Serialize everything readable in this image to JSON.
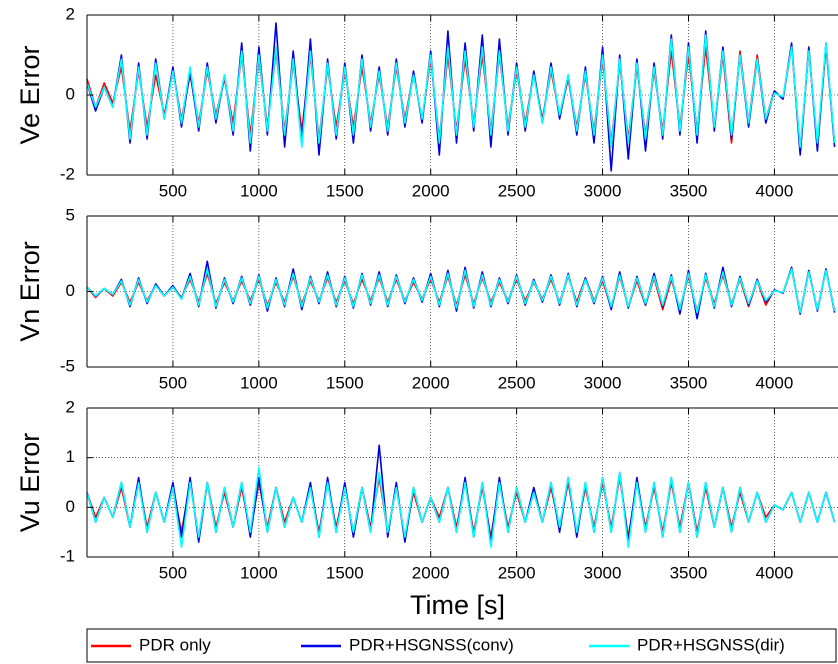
{
  "chart_data": [
    {
      "type": "line",
      "ylabel": "Ve Error",
      "xlim": [
        0,
        4370
      ],
      "ylim": [
        -2,
        2
      ],
      "xticks": [
        500,
        1000,
        1500,
        2000,
        2500,
        3000,
        3500,
        4000
      ],
      "yticks": [
        -2,
        0,
        2
      ],
      "grid": true,
      "x": [
        0,
        50,
        100,
        150,
        200,
        250,
        300,
        350,
        400,
        450,
        500,
        550,
        600,
        650,
        700,
        750,
        800,
        850,
        900,
        950,
        1000,
        1050,
        1100,
        1150,
        1200,
        1250,
        1300,
        1350,
        1400,
        1450,
        1500,
        1550,
        1600,
        1650,
        1700,
        1750,
        1800,
        1850,
        1900,
        1950,
        2000,
        2050,
        2100,
        2150,
        2200,
        2250,
        2300,
        2350,
        2400,
        2450,
        2500,
        2550,
        2600,
        2650,
        2700,
        2750,
        2800,
        2850,
        2900,
        2950,
        3000,
        3050,
        3100,
        3150,
        3200,
        3250,
        3300,
        3350,
        3400,
        3450,
        3500,
        3550,
        3600,
        3650,
        3700,
        3750,
        3800,
        3850,
        3900,
        3950,
        4000,
        4050,
        4100,
        4150,
        4200,
        4250,
        4300,
        4350
      ],
      "series": [
        {
          "color": "#ff0000",
          "values": [
            0.4,
            -0.3,
            0.3,
            -0.2,
            0.7,
            -0.9,
            0.6,
            -0.8,
            0.5,
            -0.5,
            0.6,
            -0.6,
            0.5,
            -0.7,
            0.6,
            -0.5,
            0.4,
            -0.7,
            1.0,
            -1.0,
            0.9,
            -0.8,
            1.1,
            -0.9,
            0.8,
            -0.9,
            1.0,
            -1.1,
            0.7,
            -0.8,
            0.6,
            -0.8,
            0.7,
            -0.7,
            0.5,
            -0.8,
            0.7,
            -0.6,
            0.5,
            -0.6,
            0.9,
            -1.1,
            1.0,
            -0.9,
            0.9,
            -0.7,
            1.0,
            -0.9,
            1.0,
            -0.8,
            0.6,
            -0.7,
            0.5,
            -0.6,
            0.6,
            -0.5,
            0.4,
            -0.8,
            0.5,
            -0.9,
            0.9,
            -1.2,
            0.8,
            -1.1,
            0.7,
            -1.0,
            0.6,
            -0.9,
            1.1,
            -0.8,
            1.0,
            -0.9,
            1.2,
            -0.8,
            1.0,
            -1.2,
            1.1,
            -0.7,
            1.0,
            -0.6,
            0.1,
            -0.1,
            1.2,
            -1.4,
            1.1,
            -1.3,
            1.2,
            -1.2
          ]
        },
        {
          "color": "#0000e0",
          "values": [
            0.3,
            -0.4,
            0.2,
            -0.3,
            1.0,
            -1.2,
            0.8,
            -1.1,
            0.9,
            -0.6,
            0.7,
            -0.8,
            0.6,
            -0.9,
            0.8,
            -0.7,
            0.5,
            -1.0,
            1.3,
            -1.4,
            1.2,
            -1.0,
            1.8,
            -1.3,
            1.1,
            -1.2,
            1.4,
            -1.5,
            0.9,
            -1.1,
            0.8,
            -1.2,
            1.0,
            -0.9,
            0.7,
            -1.0,
            0.9,
            -0.8,
            0.6,
            -0.7,
            1.1,
            -1.5,
            1.6,
            -1.2,
            1.3,
            -0.9,
            1.5,
            -1.3,
            1.4,
            -1.0,
            0.8,
            -0.9,
            0.6,
            -0.7,
            0.8,
            -0.6,
            0.5,
            -1.0,
            0.7,
            -1.2,
            1.2,
            -1.9,
            1.0,
            -1.6,
            0.9,
            -1.4,
            0.8,
            -1.1,
            1.5,
            -1.0,
            1.3,
            -1.2,
            1.6,
            -0.9,
            1.2,
            -1.1,
            1.0,
            -0.8,
            0.9,
            -0.7,
            0.1,
            -0.1,
            1.3,
            -1.5,
            1.2,
            -1.4,
            1.3,
            -1.3
          ]
        },
        {
          "color": "#00ffff",
          "values": [
            0.3,
            -0.3,
            0.2,
            -0.3,
            0.9,
            -1.1,
            0.7,
            -1.0,
            0.8,
            -0.6,
            0.6,
            -0.7,
            0.7,
            -0.8,
            0.7,
            -0.6,
            0.5,
            -0.9,
            1.1,
            -1.2,
            1.0,
            -0.9,
            1.2,
            -1.0,
            0.9,
            -1.3,
            1.1,
            -1.2,
            0.8,
            -1.0,
            0.7,
            -1.0,
            0.9,
            -0.8,
            0.6,
            -0.9,
            0.8,
            -0.7,
            0.5,
            -0.6,
            1.0,
            -1.2,
            1.2,
            -1.0,
            1.1,
            -0.8,
            1.2,
            -1.0,
            1.1,
            -0.9,
            0.7,
            -0.8,
            0.5,
            -0.7,
            0.7,
            -0.5,
            0.5,
            -0.9,
            0.6,
            -1.0,
            1.0,
            -1.3,
            0.9,
            -1.2,
            0.8,
            -1.1,
            0.7,
            -1.0,
            1.4,
            -0.9,
            1.2,
            -1.0,
            1.5,
            -0.8,
            1.1,
            -1.0,
            1.0,
            -0.7,
            0.9,
            -0.6,
            0.05,
            -0.05,
            1.2,
            -1.3,
            1.1,
            -1.2,
            1.3,
            -1.2
          ]
        }
      ]
    },
    {
      "type": "line",
      "ylabel": "Vn Error",
      "xlim": [
        0,
        4370
      ],
      "ylim": [
        -5,
        5
      ],
      "xticks": [
        500,
        1000,
        1500,
        2000,
        2500,
        3000,
        3500,
        4000
      ],
      "yticks": [
        -5,
        0,
        5
      ],
      "grid": true,
      "x": [
        0,
        50,
        100,
        150,
        200,
        250,
        300,
        350,
        400,
        450,
        500,
        550,
        600,
        650,
        700,
        750,
        800,
        850,
        900,
        950,
        1000,
        1050,
        1100,
        1150,
        1200,
        1250,
        1300,
        1350,
        1400,
        1450,
        1500,
        1550,
        1600,
        1650,
        1700,
        1750,
        1800,
        1850,
        1900,
        1950,
        2000,
        2050,
        2100,
        2150,
        2200,
        2250,
        2300,
        2350,
        2400,
        2450,
        2500,
        2550,
        2600,
        2650,
        2700,
        2750,
        2800,
        2850,
        2900,
        2950,
        3000,
        3050,
        3100,
        3150,
        3200,
        3250,
        3300,
        3350,
        3400,
        3450,
        3500,
        3550,
        3600,
        3650,
        3700,
        3750,
        3800,
        3850,
        3900,
        3950,
        4000,
        4050,
        4100,
        4150,
        4200,
        4250,
        4300,
        4350
      ],
      "series": [
        {
          "color": "#ff0000",
          "values": [
            0.3,
            -0.4,
            0.2,
            -0.3,
            0.6,
            -0.7,
            0.6,
            -0.6,
            0.4,
            -0.3,
            0.3,
            -0.4,
            0.8,
            -0.7,
            1.2,
            -0.8,
            0.6,
            -0.6,
            0.7,
            -0.6,
            0.8,
            -0.9,
            0.6,
            -0.7,
            1.0,
            -0.8,
            0.7,
            -0.6,
            0.9,
            -0.7,
            0.7,
            -0.8,
            0.8,
            -0.6,
            0.9,
            -0.7,
            0.8,
            -0.6,
            0.6,
            -0.5,
            0.8,
            -0.7,
            1.0,
            -0.9,
            1.1,
            -0.8,
            0.9,
            -0.7,
            0.6,
            -0.6,
            0.8,
            -0.6,
            0.6,
            -0.5,
            0.8,
            -0.7,
            1.0,
            -0.7,
            0.9,
            -0.6,
            0.7,
            -1.1,
            1.0,
            -1.0,
            0.7,
            -0.9,
            0.9,
            -1.2,
            0.8,
            -1.1,
            1.0,
            -1.3,
            0.9,
            -0.8,
            1.1,
            -0.8,
            0.8,
            -1.0,
            0.7,
            -0.9,
            0.1,
            -0.1,
            1.5,
            -1.4,
            1.3,
            -1.2,
            1.4,
            -1.3
          ]
        },
        {
          "color": "#0000e0",
          "values": [
            0.3,
            -0.3,
            0.2,
            -0.2,
            0.8,
            -1.0,
            0.9,
            -0.8,
            0.5,
            -0.3,
            0.4,
            -0.5,
            1.2,
            -1.0,
            2.0,
            -1.1,
            0.9,
            -0.8,
            1.0,
            -0.9,
            1.1,
            -1.3,
            0.9,
            -1.0,
            1.5,
            -1.2,
            1.0,
            -0.8,
            1.3,
            -1.0,
            1.0,
            -1.1,
            1.2,
            -0.9,
            1.3,
            -1.0,
            1.1,
            -0.8,
            0.9,
            -0.7,
            1.2,
            -1.0,
            1.4,
            -1.3,
            1.6,
            -1.1,
            1.3,
            -1.0,
            0.9,
            -0.8,
            1.1,
            -0.9,
            0.8,
            -0.7,
            1.1,
            -0.9,
            1.2,
            -1.0,
            0.9,
            -0.8,
            1.0,
            -1.2,
            1.3,
            -1.1,
            1.0,
            -0.9,
            1.2,
            -1.0,
            1.1,
            -1.5,
            1.4,
            -1.8,
            1.2,
            -1.1,
            1.6,
            -1.0,
            1.0,
            -0.9,
            0.8,
            -0.7,
            0.1,
            -0.1,
            1.6,
            -1.5,
            1.4,
            -1.3,
            1.5,
            -1.4
          ]
        },
        {
          "color": "#00ffff",
          "values": [
            0.3,
            -0.3,
            0.2,
            -0.2,
            0.7,
            -0.9,
            0.8,
            -0.7,
            0.4,
            -0.3,
            0.3,
            -0.5,
            1.0,
            -0.9,
            1.5,
            -1.0,
            0.8,
            -0.7,
            0.9,
            -0.8,
            1.0,
            -1.1,
            0.8,
            -0.9,
            1.2,
            -1.0,
            0.9,
            -0.7,
            1.1,
            -0.9,
            0.9,
            -1.0,
            1.1,
            -0.8,
            1.1,
            -0.9,
            1.0,
            -0.7,
            0.8,
            -0.6,
            1.0,
            -0.9,
            1.2,
            -1.1,
            1.4,
            -1.0,
            1.1,
            -0.9,
            0.8,
            -0.7,
            1.0,
            -0.8,
            0.7,
            -0.6,
            1.0,
            -0.8,
            1.1,
            -0.9,
            0.8,
            -0.7,
            0.9,
            -1.0,
            1.1,
            -1.0,
            0.9,
            -0.8,
            1.0,
            -0.9,
            1.0,
            -1.2,
            1.2,
            -1.4,
            1.1,
            -1.0,
            1.3,
            -0.9,
            0.9,
            -0.8,
            0.7,
            -0.6,
            0.05,
            -0.05,
            1.5,
            -1.4,
            1.3,
            -1.2,
            1.4,
            -1.3
          ]
        }
      ]
    },
    {
      "type": "line",
      "ylabel": "Vu Error",
      "xlabel": "Time [s]",
      "xlim": [
        0,
        4370
      ],
      "ylim": [
        -1,
        2
      ],
      "xticks": [
        500,
        1000,
        1500,
        2000,
        2500,
        3000,
        3500,
        4000
      ],
      "yticks": [
        -1,
        0,
        1,
        2
      ],
      "grid": true,
      "legend": "bottom",
      "x": [
        0,
        50,
        100,
        150,
        200,
        250,
        300,
        350,
        400,
        450,
        500,
        550,
        600,
        650,
        700,
        750,
        800,
        850,
        900,
        950,
        1000,
        1050,
        1100,
        1150,
        1200,
        1250,
        1300,
        1350,
        1400,
        1450,
        1500,
        1550,
        1600,
        1650,
        1700,
        1750,
        1800,
        1850,
        1900,
        1950,
        2000,
        2050,
        2100,
        2150,
        2200,
        2250,
        2300,
        2350,
        2400,
        2450,
        2500,
        2550,
        2600,
        2650,
        2700,
        2750,
        2800,
        2850,
        2900,
        2950,
        3000,
        3050,
        3100,
        3150,
        3200,
        3250,
        3300,
        3350,
        3400,
        3450,
        3500,
        3550,
        3600,
        3650,
        3700,
        3750,
        3800,
        3850,
        3900,
        3950,
        4000,
        4050,
        4100,
        4150,
        4200,
        4250,
        4300,
        4350
      ],
      "series": [
        {
          "name": "PDR only",
          "color": "#ff0000",
          "values": [
            0.3,
            -0.2,
            0.2,
            -0.2,
            0.4,
            -0.4,
            0.5,
            -0.4,
            0.3,
            -0.3,
            0.4,
            -0.5,
            0.5,
            -0.6,
            0.5,
            -0.4,
            0.3,
            -0.4,
            0.4,
            -0.5,
            0.5,
            -0.4,
            0.4,
            -0.3,
            0.2,
            -0.3,
            0.4,
            -0.5,
            0.5,
            -0.4,
            0.4,
            -0.5,
            0.4,
            -0.4,
            0.6,
            -0.5,
            0.4,
            -0.6,
            0.3,
            -0.3,
            0.2,
            -0.2,
            0.4,
            -0.4,
            0.5,
            -0.5,
            0.4,
            -0.6,
            0.5,
            -0.4,
            0.3,
            -0.3,
            0.3,
            -0.3,
            0.4,
            -0.4,
            0.5,
            -0.5,
            0.4,
            -0.4,
            0.5,
            -0.4,
            0.6,
            -0.6,
            0.5,
            -0.4,
            0.4,
            -0.5,
            0.5,
            -0.4,
            0.5,
            -0.5,
            0.4,
            -0.4,
            0.4,
            -0.4,
            0.3,
            -0.3,
            0.3,
            -0.2,
            0.05,
            -0.05,
            0.3,
            -0.3,
            0.3,
            -0.3,
            0.3,
            -0.3
          ]
        },
        {
          "name": "PDR+HSGNSS(conv)",
          "color": "#0000e0",
          "values": [
            0.3,
            -0.3,
            0.2,
            -0.2,
            0.5,
            -0.4,
            0.6,
            -0.5,
            0.3,
            -0.3,
            0.5,
            -0.6,
            0.6,
            -0.7,
            0.5,
            -0.5,
            0.4,
            -0.4,
            0.5,
            -0.6,
            0.6,
            -0.5,
            0.4,
            -0.4,
            0.2,
            -0.3,
            0.5,
            -0.6,
            0.6,
            -0.5,
            0.5,
            -0.6,
            0.4,
            -0.5,
            1.25,
            -0.6,
            0.5,
            -0.7,
            0.4,
            -0.3,
            0.2,
            -0.3,
            0.4,
            -0.5,
            0.6,
            -0.6,
            0.5,
            -0.7,
            0.6,
            -0.5,
            0.4,
            -0.3,
            0.4,
            -0.3,
            0.5,
            -0.5,
            0.6,
            -0.6,
            0.5,
            -0.5,
            0.6,
            -0.5,
            0.7,
            -0.7,
            0.6,
            -0.5,
            0.5,
            -0.6,
            0.6,
            -0.5,
            0.5,
            -0.6,
            0.5,
            -0.4,
            0.4,
            -0.5,
            0.4,
            -0.3,
            0.3,
            -0.3,
            0.05,
            -0.05,
            0.3,
            -0.3,
            0.3,
            -0.3,
            0.3,
            -0.3
          ]
        },
        {
          "name": "PDR+HSGNSS(dir)",
          "color": "#00ffff",
          "values": [
            0.3,
            -0.3,
            0.2,
            -0.2,
            0.5,
            -0.4,
            0.5,
            -0.5,
            0.3,
            -0.3,
            0.4,
            -0.8,
            0.5,
            -0.6,
            0.5,
            -0.5,
            0.4,
            -0.4,
            0.5,
            -0.5,
            0.8,
            -0.5,
            0.4,
            -0.4,
            0.2,
            -0.3,
            0.4,
            -0.6,
            0.5,
            -0.5,
            0.4,
            -0.5,
            0.4,
            -0.5,
            0.7,
            -0.5,
            0.4,
            -0.6,
            0.4,
            -0.3,
            0.2,
            -0.3,
            0.4,
            -0.5,
            0.5,
            -0.6,
            0.5,
            -0.8,
            0.5,
            -0.5,
            0.4,
            -0.3,
            0.3,
            -0.3,
            0.5,
            -0.4,
            0.6,
            -0.5,
            0.5,
            -0.5,
            0.6,
            -0.5,
            0.7,
            -0.8,
            0.5,
            -0.5,
            0.5,
            -0.6,
            0.6,
            -0.5,
            0.5,
            -0.6,
            0.5,
            -0.4,
            0.4,
            -0.5,
            0.4,
            -0.3,
            0.3,
            -0.3,
            0.05,
            -0.05,
            0.3,
            -0.3,
            0.3,
            -0.3,
            0.3,
            -0.3
          ]
        }
      ]
    }
  ]
}
